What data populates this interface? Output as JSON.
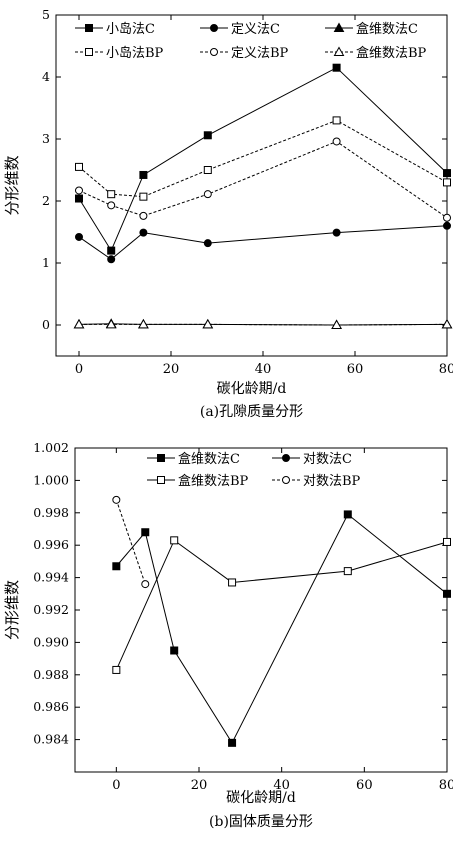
{
  "chart_data": [
    {
      "type": "line",
      "caption": "(a)孔隙质量分形",
      "xlabel": "碳化龄期/d",
      "ylabel": "分形维数",
      "xlim": [
        -5,
        80
      ],
      "ylim": [
        -0.5,
        5
      ],
      "xticks": [
        0,
        20,
        40,
        60,
        80
      ],
      "yticks": [
        0,
        1,
        2,
        3,
        4,
        5
      ],
      "grid": false,
      "legend_position": "top",
      "x": [
        0,
        7,
        14,
        28,
        56,
        80
      ],
      "series": [
        {
          "name": "小岛法C",
          "values": [
            2.04,
            1.2,
            2.42,
            3.06,
            4.15,
            2.45
          ],
          "marker": "square",
          "fill": "filled",
          "line": "solid"
        },
        {
          "name": "定义法C",
          "values": [
            1.42,
            1.06,
            1.49,
            1.32,
            1.49,
            1.6
          ],
          "marker": "circle",
          "fill": "filled",
          "line": "solid"
        },
        {
          "name": "盒维数法C",
          "values": [
            0.01,
            0.02,
            0.01,
            0.01,
            0.0,
            0.01
          ],
          "marker": "triangle",
          "fill": "filled",
          "line": "solid"
        },
        {
          "name": "小岛法BP",
          "values": [
            2.55,
            2.11,
            2.07,
            2.5,
            3.3,
            2.3
          ],
          "marker": "square",
          "fill": "open",
          "line": "dashed"
        },
        {
          "name": "定义法BP",
          "values": [
            2.17,
            1.93,
            1.76,
            2.11,
            2.96,
            1.73
          ],
          "marker": "circle",
          "fill": "open",
          "line": "dashed"
        },
        {
          "name": "盒维数法BP",
          "values": [
            0.01,
            0.01,
            0.01,
            0.01,
            0.0,
            0.01
          ],
          "marker": "triangle",
          "fill": "open",
          "line": "dashed"
        }
      ]
    },
    {
      "type": "line",
      "caption": "(b)固体质量分形",
      "xlabel": "碳化龄期/d",
      "ylabel": "分形维数",
      "xlim": [
        -10,
        80
      ],
      "ylim": [
        0.982,
        1.002
      ],
      "xticks": [
        0,
        20,
        40,
        60,
        80
      ],
      "yticks": [
        0.984,
        0.986,
        0.988,
        0.99,
        0.992,
        0.994,
        0.996,
        0.998,
        1.0,
        1.002
      ],
      "ytick_labels": [
        "0.984",
        "0.986",
        "0.988",
        "0.990",
        "0.992",
        "0.994",
        "0.996",
        "0.998",
        "1.000",
        "1.002"
      ],
      "grid": false,
      "legend_position": "top",
      "series": [
        {
          "name": "盒维数法C",
          "x": [
            0,
            7,
            14,
            28,
            56,
            80
          ],
          "values": [
            0.9947,
            0.9968,
            0.9895,
            0.9838,
            0.9979,
            0.993
          ],
          "marker": "square",
          "fill": "filled",
          "line": "solid"
        },
        {
          "name": "对数法C",
          "x": [],
          "values": [],
          "marker": "circle",
          "fill": "filled",
          "line": "solid"
        },
        {
          "name": "盒维数法BP",
          "x": [
            0,
            14,
            28,
            56,
            80
          ],
          "values": [
            0.9883,
            0.9963,
            0.9937,
            0.9944,
            0.9962
          ],
          "marker": "square",
          "fill": "open",
          "line": "solid"
        },
        {
          "name": "对数法BP",
          "x": [
            0,
            7
          ],
          "values": [
            0.9988,
            0.9936
          ],
          "marker": "circle",
          "fill": "open",
          "line": "dashed"
        }
      ]
    }
  ]
}
